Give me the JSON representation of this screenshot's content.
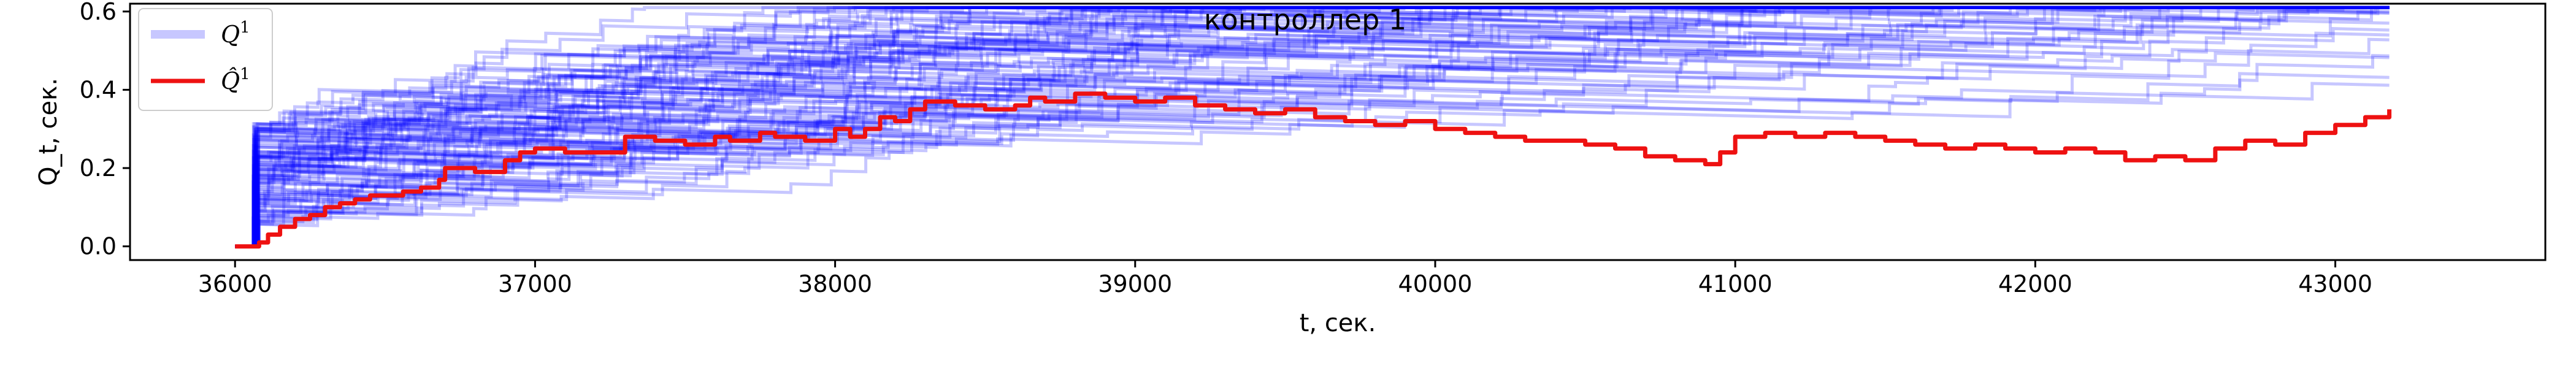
{
  "chart_data": {
    "type": "line",
    "title": "контроллер 1",
    "xlabel": "t,  сек.",
    "ylabel": "Q_t,  сек.",
    "xlim": [
      35650,
      43700
    ],
    "ylim": [
      -0.035,
      0.62
    ],
    "x_ticks": [
      36000,
      37000,
      38000,
      39000,
      40000,
      41000,
      42000,
      43000
    ],
    "x_tick_labels": [
      "36000",
      "37000",
      "38000",
      "39000",
      "40000",
      "41000",
      "42000",
      "43000"
    ],
    "y_ticks": [
      0.0,
      0.2,
      0.4,
      0.6
    ],
    "y_tick_labels": [
      "0.0",
      "0.2",
      "0.4",
      "0.6"
    ],
    "grid": false,
    "legend_position": "top-left",
    "legend": [
      {
        "label": "Q",
        "sup": "1",
        "color": "#0000ff",
        "alpha": 0.2
      },
      {
        "label": "Q̂",
        "sup": "1",
        "color": "#ff0000",
        "alpha": 1.0
      }
    ],
    "series": [
      {
        "name": "Q̂¹",
        "color": "#ee1111",
        "x": [
          36000,
          36050,
          36080,
          36110,
          36150,
          36200,
          36250,
          36300,
          36350,
          36400,
          36450,
          36500,
          36560,
          36620,
          36680,
          36700,
          36800,
          36900,
          36950,
          37000,
          37100,
          37200,
          37300,
          37400,
          37500,
          37600,
          37650,
          37750,
          37800,
          37900,
          38000,
          38050,
          38100,
          38150,
          38200,
          38250,
          38300,
          38400,
          38500,
          38600,
          38650,
          38700,
          38800,
          38900,
          39000,
          39100,
          39200,
          39300,
          39400,
          39500,
          39600,
          39700,
          39800,
          39900,
          40000,
          40100,
          40200,
          40300,
          40400,
          40500,
          40600,
          40700,
          40800,
          40900,
          40950,
          41000,
          41100,
          41200,
          41300,
          41400,
          41500,
          41600,
          41700,
          41800,
          41900,
          42000,
          42100,
          42200,
          42300,
          42400,
          42500,
          42600,
          42700,
          42800,
          42900,
          43000,
          43100,
          43180
        ],
        "y": [
          0.0,
          0.0,
          0.01,
          0.03,
          0.05,
          0.07,
          0.08,
          0.1,
          0.11,
          0.12,
          0.13,
          0.13,
          0.14,
          0.15,
          0.17,
          0.2,
          0.19,
          0.22,
          0.24,
          0.25,
          0.24,
          0.24,
          0.28,
          0.27,
          0.26,
          0.28,
          0.27,
          0.29,
          0.28,
          0.27,
          0.3,
          0.28,
          0.3,
          0.33,
          0.32,
          0.35,
          0.37,
          0.36,
          0.35,
          0.36,
          0.38,
          0.37,
          0.39,
          0.38,
          0.37,
          0.38,
          0.36,
          0.35,
          0.34,
          0.35,
          0.33,
          0.32,
          0.31,
          0.32,
          0.3,
          0.29,
          0.28,
          0.27,
          0.27,
          0.26,
          0.25,
          0.23,
          0.22,
          0.21,
          0.24,
          0.28,
          0.29,
          0.28,
          0.29,
          0.28,
          0.27,
          0.26,
          0.25,
          0.26,
          0.25,
          0.24,
          0.25,
          0.24,
          0.22,
          0.23,
          0.22,
          0.25,
          0.27,
          0.26,
          0.29,
          0.31,
          0.33,
          0.35
        ]
      }
    ],
    "ensemble": {
      "name": "Q¹",
      "color": "#0000ff",
      "opacity": 0.22,
      "count": 100,
      "x_start": 36000,
      "x_end": 43180
    }
  }
}
